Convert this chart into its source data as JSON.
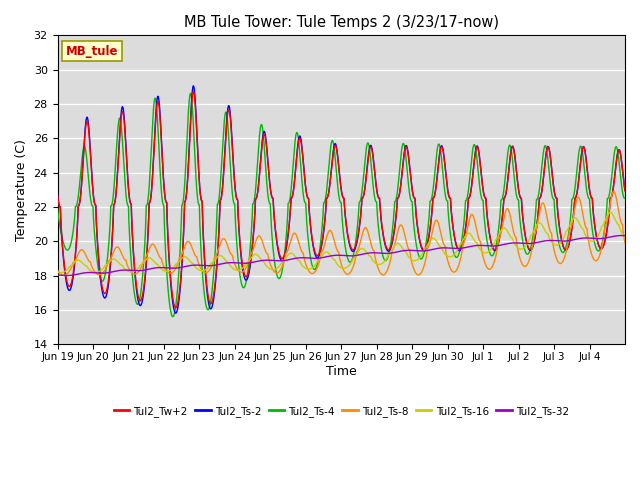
{
  "title": "MB Tule Tower: Tule Temps 2 (3/23/17-now)",
  "xlabel": "Time",
  "ylabel": "Temperature (C)",
  "ylim": [
    14,
    32
  ],
  "yticks": [
    14,
    16,
    18,
    20,
    22,
    24,
    26,
    28,
    30,
    32
  ],
  "bg_color": "#dcdcdc",
  "fig_color": "#ffffff",
  "station_label": "MB_tule",
  "legend_entries": [
    "Tul2_Tw+2",
    "Tul2_Ts-2",
    "Tul2_Ts-4",
    "Tul2_Ts-8",
    "Tul2_Ts-16",
    "Tul2_Ts-32"
  ],
  "line_colors": [
    "#ff0000",
    "#0000ff",
    "#00bb00",
    "#ff8800",
    "#cccc00",
    "#9900cc"
  ],
  "xtick_labels": [
    "Jun 19",
    "Jun 20",
    "Jun 21",
    "Jun 22",
    "Jun 23",
    "Jun 24",
    "Jun 25",
    "Jun 26",
    "Jun 27",
    "Jun 28",
    "Jun 29",
    "Jun 30",
    "Jul 1",
    "Jul 2",
    "Jul 3",
    "Jul 4"
  ],
  "n_days": 16,
  "pts_per_day": 240
}
